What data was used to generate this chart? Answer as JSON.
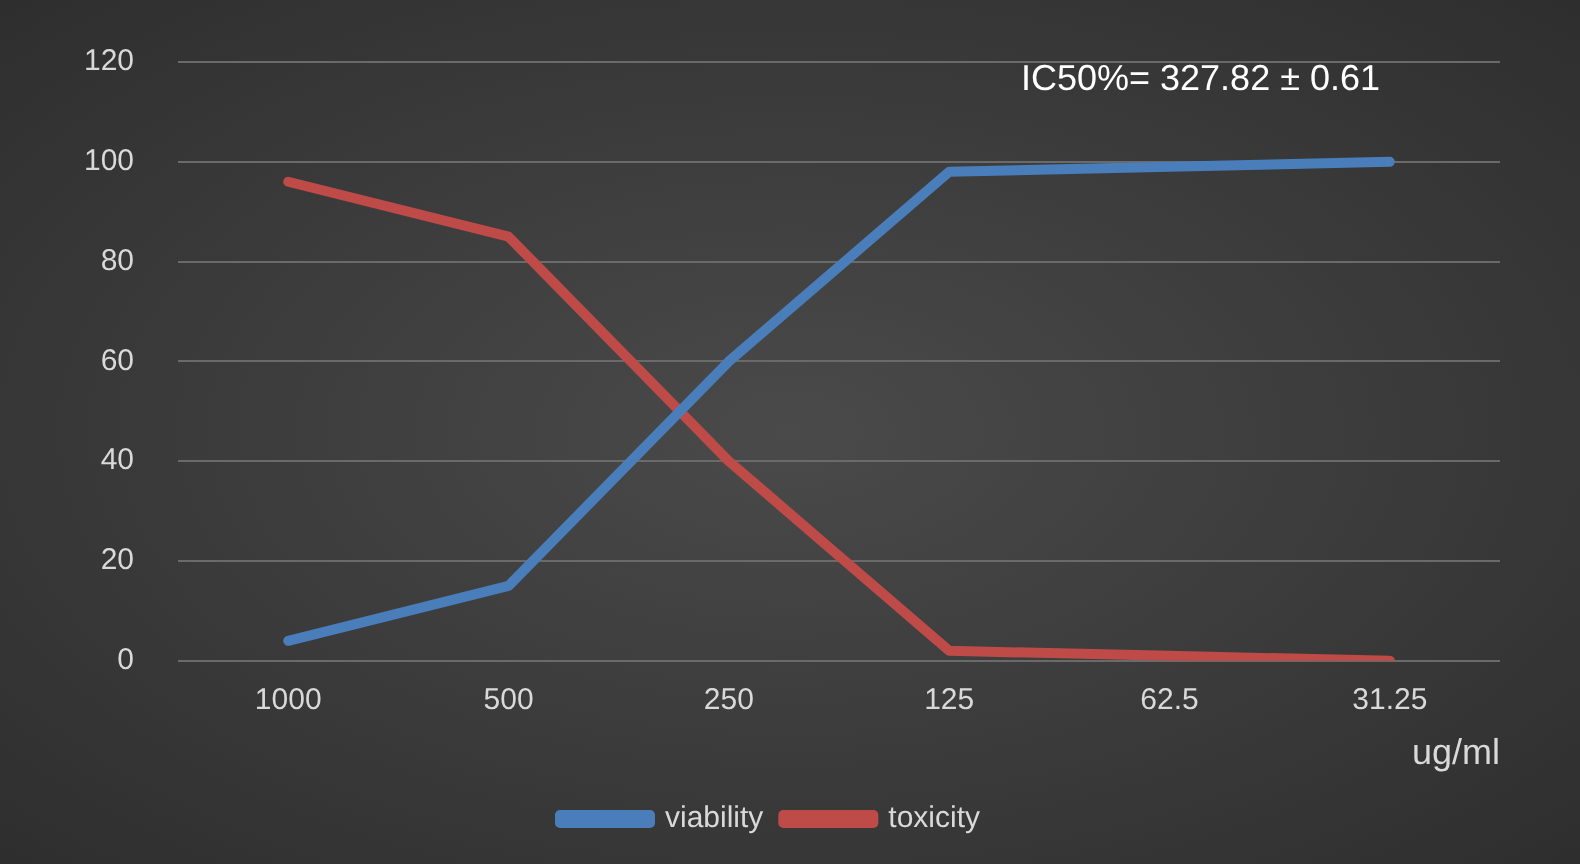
{
  "chart_data": {
    "type": "line",
    "xlabel": "ug/ml",
    "categories": [
      "1000",
      "500",
      "250",
      "125",
      "62.5",
      "31.25"
    ],
    "series": [
      {
        "name": "viability",
        "color": "#4a7ebb",
        "values": [
          4,
          15,
          60,
          98,
          99,
          100
        ]
      },
      {
        "name": "toxicity",
        "color": "#be4b48",
        "values": [
          96,
          85,
          40,
          2,
          1,
          0
        ]
      }
    ],
    "ylim": [
      0,
      120
    ],
    "yticks": [
      0,
      20,
      40,
      60,
      80,
      100,
      120
    ],
    "grid": "y",
    "legend": "bottom",
    "marker": "none",
    "line_style": "solid",
    "annotations": [
      "IC50%= 327.82 ± 0.61"
    ]
  }
}
